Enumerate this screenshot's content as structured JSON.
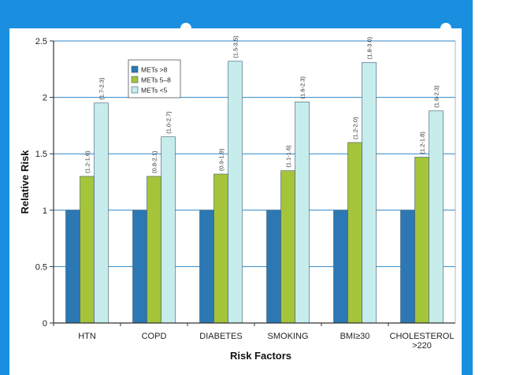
{
  "colors": {
    "frame_blue": "#1a8fe0",
    "plot_bg": "#ffffff",
    "gridline": "#2f86c8",
    "axis": "#333333"
  },
  "chart_data": {
    "type": "bar",
    "xlabel": "Risk Factors",
    "ylabel": "Relative Risk",
    "ylim": [
      0,
      2.5
    ],
    "yticks": [
      "0",
      "0.5",
      "1",
      "1.5",
      "2",
      "2.5"
    ],
    "ytick_values": [
      0,
      0.5,
      1,
      1.5,
      2,
      2.5
    ],
    "grid": true,
    "legend_position": "top-left",
    "categories": [
      [
        "HTN"
      ],
      [
        "COPD"
      ],
      [
        "DIABETES"
      ],
      [
        "SMOKING"
      ],
      [
        "BMI≥30"
      ],
      [
        "CHOLESTEROL",
        ">220"
      ]
    ],
    "series": [
      {
        "name": "METs >8",
        "color": "#2c78b4",
        "values": [
          1,
          1,
          1,
          1,
          1,
          1
        ],
        "ci": [
          "",
          "",
          "",
          "",
          "",
          ""
        ]
      },
      {
        "name": "METs 5–8",
        "color": "#a5c43a",
        "values": [
          1.3,
          1.3,
          1.32,
          1.35,
          1.6,
          1.47
        ],
        "ci": [
          "(1.2-1.6)",
          "(0.8-2.1)",
          "(0.9-1.9)",
          "(1.1-1.6)",
          "(1.2-2.0)",
          "(1.2-1.8)"
        ]
      },
      {
        "name": "METs <5",
        "color": "#c6ecec",
        "values": [
          1.95,
          1.65,
          2.32,
          1.96,
          2.31,
          1.88
        ],
        "ci": [
          "(1.7-2.3)",
          "(1.0-2.7)",
          "(1.5-3.5)",
          "(1.6-2.3)",
          "(1.8-3.0)",
          "(1.6-2.3)"
        ]
      }
    ]
  }
}
